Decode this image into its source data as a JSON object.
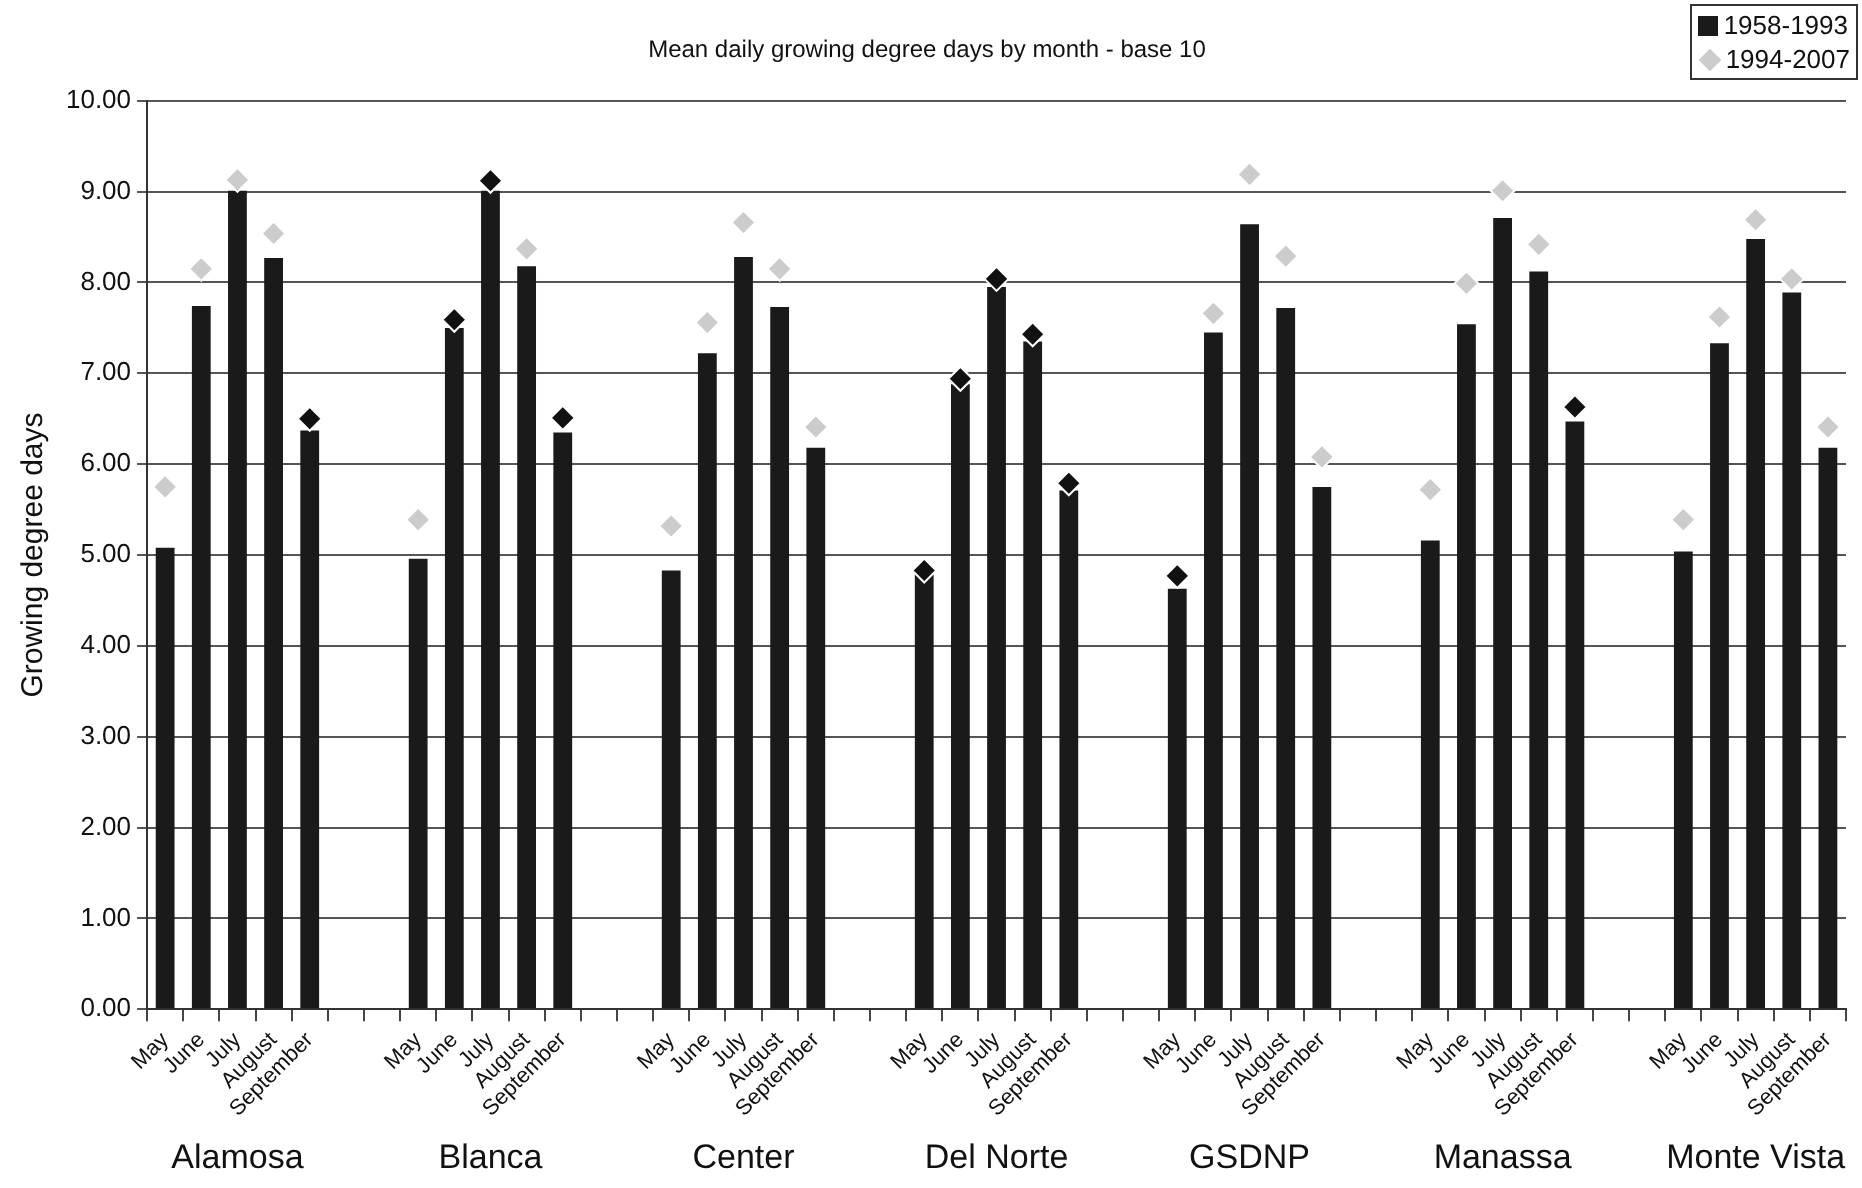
{
  "chart_data": {
    "type": "bar",
    "title": "Mean daily growing degree days by month - base 10",
    "ylabel": "Growing degree days",
    "categories": [
      "May",
      "June",
      "July",
      "August",
      "September",
      null,
      null,
      "May",
      "June",
      "July",
      "August",
      "September",
      null,
      null,
      "May",
      "June",
      "July",
      "August",
      "September",
      null,
      null,
      "May",
      "June",
      "July",
      "August",
      "September",
      null,
      null,
      "May",
      "June",
      "July",
      "August",
      "September",
      null,
      null,
      "May",
      "June",
      "July",
      "August",
      "September",
      null,
      null,
      "May",
      "June",
      "July",
      "August",
      "September"
    ],
    "series": [
      {
        "name": "1958-1993",
        "color": "#1a1a1a",
        "values": [
          5.08,
          7.74,
          9.01,
          8.27,
          6.37,
          null,
          null,
          4.96,
          7.5,
          9.01,
          8.18,
          6.35,
          null,
          null,
          4.83,
          7.22,
          8.28,
          7.73,
          6.18,
          null,
          null,
          4.79,
          6.88,
          7.95,
          7.35,
          5.71,
          null,
          null,
          4.63,
          7.45,
          8.64,
          7.72,
          5.75,
          null,
          null,
          5.16,
          7.54,
          8.71,
          8.12,
          6.47,
          null,
          null,
          5.04,
          7.33,
          8.48,
          7.89,
          6.18
        ]
      },
      {
        "name": "1994-2007",
        "type": "scatter",
        "color": "#cccccc",
        "colors": [
          "#cccccc",
          "#cccccc",
          "#cccccc",
          "#cccccc",
          "#111111",
          null,
          null,
          "#cccccc",
          "#111111",
          "#111111",
          "#cccccc",
          "#111111",
          null,
          null,
          "#cccccc",
          "#cccccc",
          "#cccccc",
          "#cccccc",
          "#cccccc",
          null,
          null,
          "#111111",
          "#111111",
          "#111111",
          "#111111",
          "#111111",
          null,
          null,
          "#111111",
          "#cccccc",
          "#cccccc",
          "#cccccc",
          "#cccccc",
          null,
          null,
          "#cccccc",
          "#cccccc",
          "#cccccc",
          "#cccccc",
          "#111111",
          null,
          null,
          "#cccccc",
          "#cccccc",
          "#cccccc",
          "#cccccc",
          "#cccccc"
        ],
        "values": [
          5.75,
          8.15,
          9.13,
          8.54,
          6.5,
          null,
          null,
          5.39,
          7.59,
          9.12,
          8.37,
          6.51,
          null,
          null,
          5.32,
          7.56,
          8.66,
          8.15,
          6.41,
          null,
          null,
          4.83,
          6.94,
          8.04,
          7.43,
          5.79,
          null,
          null,
          4.77,
          7.66,
          9.19,
          8.29,
          6.08,
          null,
          null,
          5.72,
          7.99,
          9.01,
          8.42,
          6.63,
          null,
          null,
          5.39,
          7.62,
          8.69,
          8.04,
          6.41
        ]
      }
    ],
    "annotations": [
      "Alamosa",
      "Blanca",
      "Center",
      "Del Norte",
      "GSDNP",
      "Manassa",
      "Monte Vista"
    ],
    "ylim": [
      0,
      10
    ],
    "yticks": [
      {
        "value": 0,
        "label": "0.00"
      },
      {
        "value": 1,
        "label": "1.00"
      },
      {
        "value": 2,
        "label": "2.00"
      },
      {
        "value": 3,
        "label": "3.00"
      },
      {
        "value": 4,
        "label": "4.00"
      },
      {
        "value": 5,
        "label": "5.00"
      },
      {
        "value": 6,
        "label": "6.00"
      },
      {
        "value": 7,
        "label": "7.00"
      },
      {
        "value": 8,
        "label": "8.00"
      },
      {
        "value": 9,
        "label": "9.00"
      },
      {
        "value": 10,
        "label": "10.00"
      }
    ],
    "grid": "y",
    "legend": "top right",
    "marker": "diamond"
  }
}
